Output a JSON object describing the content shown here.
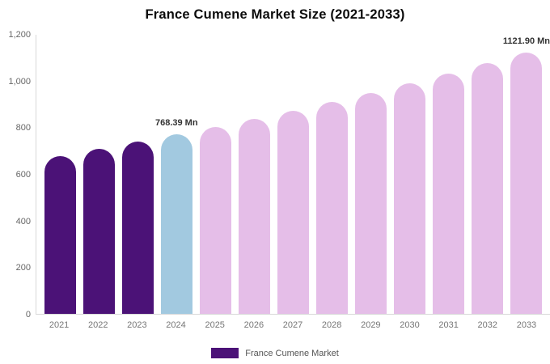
{
  "title": "France Cumene Market Size (2021-2033)",
  "legend": {
    "label": "France Cumene Market",
    "swatch_color": "#4B1277"
  },
  "colors": {
    "historical": "#4B1277",
    "base_year": "#A2C9E0",
    "forecast": "#E5BEE8",
    "axis_line": "#d9d9d9",
    "background": "#ffffff"
  },
  "chart_data": {
    "type": "bar",
    "title": "France Cumene Market Size (2021-2033)",
    "categories": [
      "2021",
      "2022",
      "2023",
      "2024",
      "2025",
      "2026",
      "2027",
      "2028",
      "2029",
      "2030",
      "2031",
      "2032",
      "2033"
    ],
    "values": [
      677,
      706,
      737,
      768.39,
      801,
      836,
      872,
      909,
      948,
      989,
      1031,
      1076,
      1121.9
    ],
    "unit": "Mn",
    "xlabel": "",
    "ylabel": "",
    "ylim": [
      0,
      1200
    ],
    "grid": false,
    "legend_position": "bottom",
    "y_ticks": [
      {
        "value": 0,
        "label": "0"
      },
      {
        "value": 200,
        "label": "200"
      },
      {
        "value": 400,
        "label": "400"
      },
      {
        "value": 600,
        "label": "600"
      },
      {
        "value": 800,
        "label": "800"
      },
      {
        "value": 1000,
        "label": "1,000"
      },
      {
        "value": 1200,
        "label": "1,200"
      }
    ],
    "bar_colors": [
      "#4B1277",
      "#4B1277",
      "#4B1277",
      "#A2C9E0",
      "#E5BEE8",
      "#E5BEE8",
      "#E5BEE8",
      "#E5BEE8",
      "#E5BEE8",
      "#E5BEE8",
      "#E5BEE8",
      "#E5BEE8",
      "#E5BEE8"
    ],
    "annotations": [
      {
        "category": "2024",
        "text": "768.39 Mn"
      },
      {
        "category": "2033",
        "text": "1121.90 Mn"
      }
    ]
  }
}
